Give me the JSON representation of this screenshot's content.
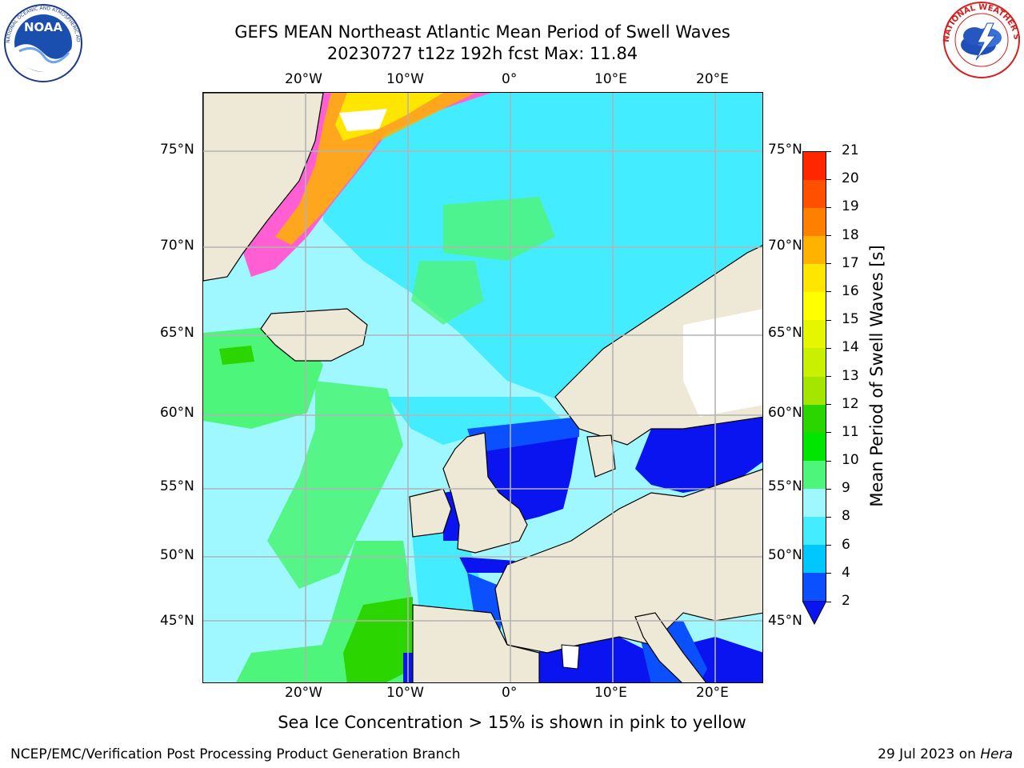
{
  "title": {
    "line1": "GEFS MEAN Northeast Atlantic Mean Period of Swell Waves",
    "line2": "20230727 t12z 192h fcst   Max: 11.84"
  },
  "logos": {
    "noaa_text": "NOAA",
    "noaa_ring_text": "NATIONAL OCEANIC AND ATMOSPHERIC ADMINISTRATION · U.S. DEPARTMENT OF COMMERCE",
    "nws_ring_text": "NATIONAL WEATHER SERVICE"
  },
  "axes": {
    "x_ticks": [
      "20°W",
      "10°W",
      "0°",
      "10°E",
      "20°E"
    ],
    "y_ticks": [
      "75°N",
      "70°N",
      "65°N",
      "60°N",
      "55°N",
      "50°N",
      "45°N"
    ]
  },
  "colorbar": {
    "label": "Mean Period of Swell Waves [s]",
    "ticks": [
      "2",
      "4",
      "6",
      "8",
      "9",
      "10",
      "11",
      "12",
      "13",
      "14",
      "15",
      "16",
      "17",
      "18",
      "19",
      "20",
      "21"
    ],
    "colors": [
      "#0a50ff",
      "#00c8ff",
      "#43ecff",
      "#9ff8ff",
      "#4df57a",
      "#00e600",
      "#2bd600",
      "#a5e600",
      "#c8f000",
      "#e6f500",
      "#ffff00",
      "#ffe600",
      "#ffb300",
      "#ff8000",
      "#ff5000",
      "#ff2600",
      "#ff0000"
    ],
    "extend_color": "#0a14f0"
  },
  "footer": {
    "note": "Sea Ice Concentration > 15% is shown in pink to yellow",
    "credit": "NCEP/EMC/Verification Post Processing Product Generation Branch",
    "date": "29 Jul 2023 on ",
    "machine": "Hera"
  }
}
